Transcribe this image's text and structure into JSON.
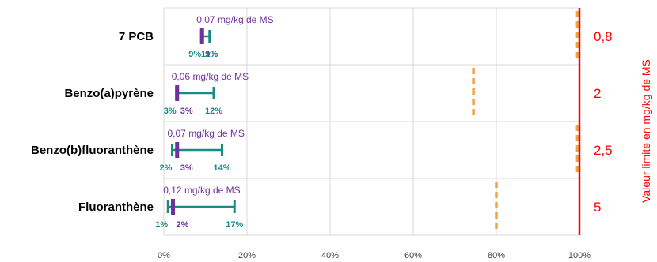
{
  "chart_data": {
    "type": "range-dot",
    "xlim": [
      0,
      100
    ],
    "x_ticks": [
      "0%",
      "20%",
      "40%",
      "60%",
      "80%",
      "100%"
    ],
    "y2label": "Valeur limite en mg/kg de MS",
    "grid": true,
    "colors": {
      "range": "#1a8a85",
      "median": "#7030a0",
      "threshold": "#f4a340",
      "limit": "#ff0000",
      "grid": "#d9d9d9"
    },
    "categories": [
      {
        "name": "7 PCB",
        "value_text": "0,07 mg/kg de MS",
        "min": 9,
        "median": 9,
        "max": 11,
        "min_label": "9%",
        "median_label": "9%",
        "max_label": "11%",
        "threshold": 99.5,
        "limit_label": "0,8"
      },
      {
        "name": "Benzo(a)pyrène",
        "value_text": "0,06 mg/kg de MS",
        "min": 3,
        "median": 3,
        "max": 12,
        "min_label": "3%",
        "median_label": "3%",
        "max_label": "12%",
        "threshold": 74.5,
        "limit_label": "2"
      },
      {
        "name": "Benzo(b)fluoranthène",
        "value_text": "0,07 mg/kg de MS",
        "min": 2,
        "median": 3,
        "max": 14,
        "min_label": "2%",
        "median_label": "3%",
        "max_label": "14%",
        "threshold": 99.5,
        "limit_label": "2,5"
      },
      {
        "name": "Fluoranthène",
        "value_text": "0,12 mg/kg de MS",
        "min": 1,
        "median": 2,
        "max": 17,
        "min_label": "1%",
        "median_label": "2%",
        "max_label": "17%",
        "threshold": 80,
        "limit_label": "5"
      }
    ]
  }
}
